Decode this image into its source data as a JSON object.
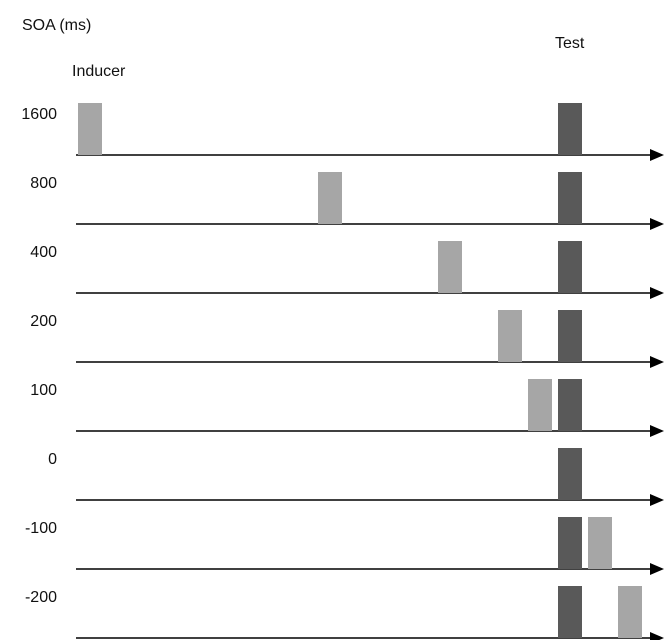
{
  "header": {
    "axis_title": "SOA (ms)",
    "test_label": "Test",
    "inducer_label": "Inducer"
  },
  "rows": [
    {
      "soa_label": "1600",
      "soa_ms": 1600
    },
    {
      "soa_label": "800",
      "soa_ms": 800
    },
    {
      "soa_label": "400",
      "soa_ms": 400
    },
    {
      "soa_label": "200",
      "soa_ms": 200
    },
    {
      "soa_label": "100",
      "soa_ms": 100
    },
    {
      "soa_label": "0",
      "soa_ms": 0
    },
    {
      "soa_label": "-100",
      "soa_ms": -100
    },
    {
      "soa_label": "-200",
      "soa_ms": -200
    }
  ],
  "colors": {
    "inducer": "#a6a6a6",
    "test": "#595959",
    "axis": "#000000"
  }
}
